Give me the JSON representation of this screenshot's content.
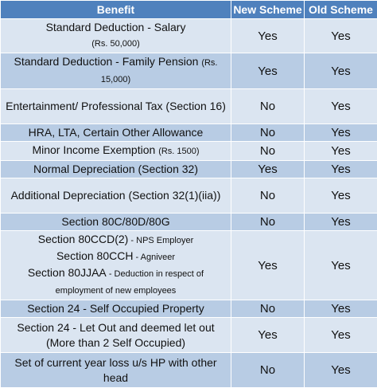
{
  "headers": {
    "benefit": "Benefit",
    "new_scheme": "New Scheme",
    "old_scheme": "Old Scheme"
  },
  "rows": [
    {
      "main": "Standard Deduction - Salary",
      "note": "(Rs. 50,000)",
      "new": "Yes",
      "old": "Yes"
    },
    {
      "main": "Standard Deduction - Family Pension",
      "note": "(Rs. 15,000)",
      "new": "Yes",
      "old": "Yes"
    },
    {
      "main": "Entertainment/ Professional Tax (Section 16)",
      "new": "No",
      "old": "Yes"
    },
    {
      "main": "HRA, LTA, Certain Other Allowance",
      "new": "No",
      "old": "Yes"
    },
    {
      "main": "Minor Income Exemption",
      "note": "(Rs. 1500)",
      "new": "No",
      "old": "Yes"
    },
    {
      "main": "Normal Depreciation (Section 32)",
      "new": "Yes",
      "old": "Yes"
    },
    {
      "main": "Additional Depreciation  (Section 32(1)(iia))",
      "new": "No",
      "old": "Yes"
    },
    {
      "main": "Section 80C/80D/80G",
      "new": "No",
      "old": "Yes"
    },
    {
      "lines": [
        {
          "main": "Section 80CCD(2)",
          "note": " - NPS Employer"
        },
        {
          "main": "Section 80CCH",
          "note": " - Agniveer"
        },
        {
          "main": "Section 80JJAA",
          "note": " - Deduction in respect of employment of new employees"
        }
      ],
      "new": "Yes",
      "old": "Yes"
    },
    {
      "main": "Section 24 - Self Occupied Property",
      "new": "No",
      "old": "Yes"
    },
    {
      "main": "Section 24 - Let Out and deemed let out (More than 2 Self Occupied)",
      "new": "Yes",
      "old": "Yes"
    },
    {
      "main": "Set of current year loss u/s HP with other head",
      "new": "No",
      "old": "Yes"
    }
  ]
}
